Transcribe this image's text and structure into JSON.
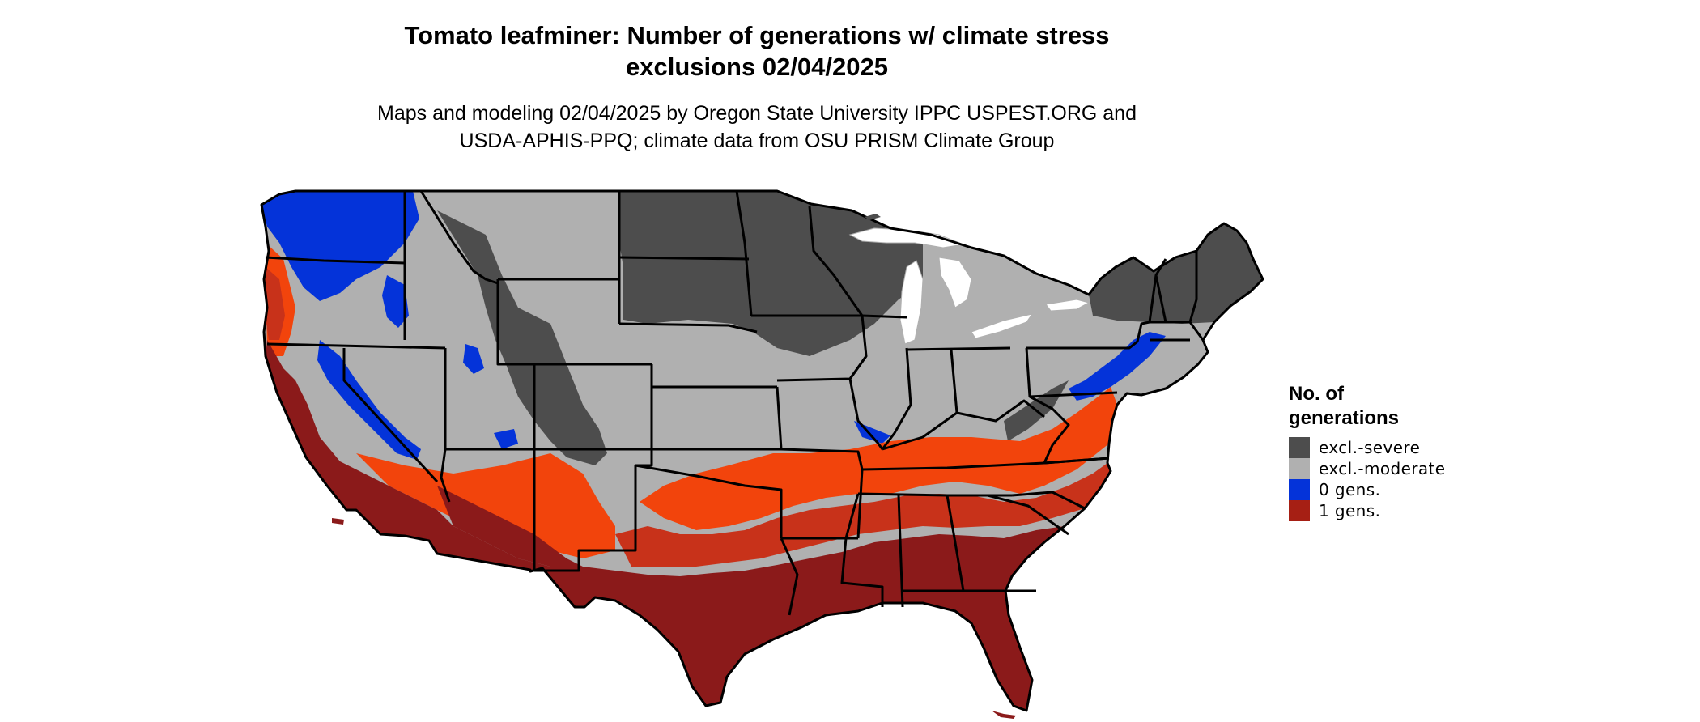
{
  "title": {
    "line1": "Tomato leafminer: Number of generations w/ climate stress",
    "line2": "exclusions 02/04/2025"
  },
  "subtitle": {
    "line1": "Maps and modeling 02/04/2025 by Oregon State University IPPC USPEST.ORG and",
    "line2": "USDA-APHIS-PPQ; climate data from OSU PRISM Climate Group"
  },
  "map": {
    "region": "conterminous-united-states",
    "state_border_color": "#000000",
    "lake_color": "#ffffff"
  },
  "legend": {
    "title_line1": "No. of",
    "title_line2": "generations",
    "items": [
      {
        "label": "excl.-severe",
        "color": "#4d4d4d"
      },
      {
        "label": "excl.-moderate",
        "color": "#b0b0b0"
      },
      {
        "label": "0 gens.",
        "color": "#0433d9"
      },
      {
        "label": "1 gens.",
        "color": "#a61f14"
      }
    ],
    "extra_shades": {
      "one_gen_dark": "#8b1a1a",
      "one_gen_mid": "#c8321a",
      "one_gen_bright": "#f2440c"
    }
  }
}
